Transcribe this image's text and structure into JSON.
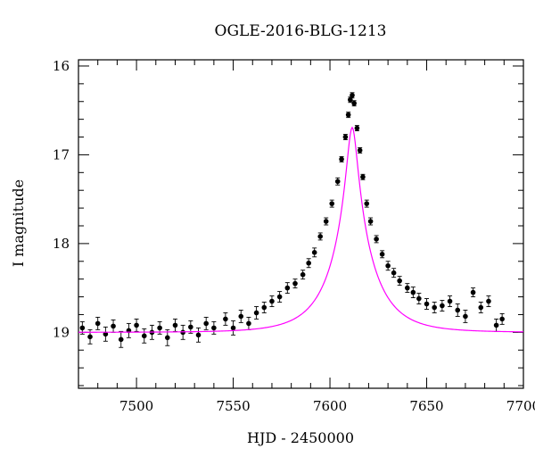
{
  "chart_data": {
    "type": "scatter",
    "title": "OGLE-2016-BLG-1213",
    "xlabel": "HJD - 2450000",
    "ylabel": "I magnitude",
    "xlim": [
      7470,
      7700
    ],
    "ylim": [
      19.63,
      15.93
    ],
    "y_inverted": true,
    "grid": false,
    "x_ticks": [
      7500,
      7550,
      7600,
      7650,
      7700
    ],
    "x_tick_labels": [
      "7500",
      "7550",
      "7600",
      "7650",
      "7700"
    ],
    "y_ticks": [
      16,
      17,
      18,
      19
    ],
    "y_tick_labels": [
      "16",
      "17",
      "18",
      "19"
    ],
    "x_minor_step": 10,
    "y_minor_step": 0.2,
    "colors": {
      "points": "#000000",
      "model": "#ff00ff"
    },
    "model": {
      "t0": 7611.5,
      "tE": 21,
      "u0": 0.12,
      "baseline_mag": 19.0,
      "blend_fraction": 1.0
    },
    "series": [
      {
        "kind": "points_with_errorbars",
        "points": [
          [
            7472,
            18.95,
            0.07
          ],
          [
            7476,
            19.05,
            0.08
          ],
          [
            7480,
            18.9,
            0.07
          ],
          [
            7484,
            19.02,
            0.08
          ],
          [
            7488,
            18.93,
            0.07
          ],
          [
            7492,
            19.08,
            0.09
          ],
          [
            7496,
            18.98,
            0.08
          ],
          [
            7500,
            18.92,
            0.07
          ],
          [
            7504,
            19.04,
            0.08
          ],
          [
            7508,
            19.0,
            0.08
          ],
          [
            7512,
            18.95,
            0.07
          ],
          [
            7516,
            19.06,
            0.09
          ],
          [
            7520,
            18.92,
            0.07
          ],
          [
            7524,
            19.0,
            0.08
          ],
          [
            7528,
            18.94,
            0.07
          ],
          [
            7532,
            19.03,
            0.08
          ],
          [
            7536,
            18.9,
            0.07
          ],
          [
            7540,
            18.95,
            0.07
          ],
          [
            7546,
            18.85,
            0.07
          ],
          [
            7550,
            18.95,
            0.08
          ],
          [
            7554,
            18.82,
            0.07
          ],
          [
            7558,
            18.9,
            0.07
          ],
          [
            7562,
            18.78,
            0.07
          ],
          [
            7566,
            18.72,
            0.06
          ],
          [
            7570,
            18.65,
            0.06
          ],
          [
            7574,
            18.6,
            0.06
          ],
          [
            7578,
            18.5,
            0.06
          ],
          [
            7582,
            18.45,
            0.05
          ],
          [
            7586,
            18.35,
            0.05
          ],
          [
            7589,
            18.22,
            0.05
          ],
          [
            7592,
            18.1,
            0.05
          ],
          [
            7595,
            17.92,
            0.04
          ],
          [
            7598,
            17.75,
            0.04
          ],
          [
            7601,
            17.55,
            0.04
          ],
          [
            7604,
            17.3,
            0.04
          ],
          [
            7606,
            17.05,
            0.03
          ],
          [
            7608,
            16.8,
            0.03
          ],
          [
            7609.5,
            16.55,
            0.03
          ],
          [
            7610.5,
            16.38,
            0.03
          ],
          [
            7611.5,
            16.33,
            0.03
          ],
          [
            7612.5,
            16.42,
            0.03
          ],
          [
            7614,
            16.7,
            0.03
          ],
          [
            7615.5,
            16.95,
            0.03
          ],
          [
            7617,
            17.25,
            0.03
          ],
          [
            7619,
            17.55,
            0.04
          ],
          [
            7621,
            17.75,
            0.04
          ],
          [
            7624,
            17.95,
            0.04
          ],
          [
            7627,
            18.12,
            0.04
          ],
          [
            7630,
            18.25,
            0.05
          ],
          [
            7633,
            18.33,
            0.05
          ],
          [
            7636,
            18.42,
            0.05
          ],
          [
            7640,
            18.5,
            0.05
          ],
          [
            7643,
            18.55,
            0.06
          ],
          [
            7646,
            18.62,
            0.06
          ],
          [
            7650,
            18.68,
            0.06
          ],
          [
            7654,
            18.72,
            0.06
          ],
          [
            7658,
            18.7,
            0.06
          ],
          [
            7662,
            18.65,
            0.06
          ],
          [
            7666,
            18.75,
            0.07
          ],
          [
            7670,
            18.82,
            0.07
          ],
          [
            7674,
            18.55,
            0.05
          ],
          [
            7678,
            18.72,
            0.06
          ],
          [
            7682,
            18.65,
            0.06
          ],
          [
            7686,
            18.92,
            0.07
          ],
          [
            7689,
            18.85,
            0.06
          ]
        ]
      }
    ]
  }
}
